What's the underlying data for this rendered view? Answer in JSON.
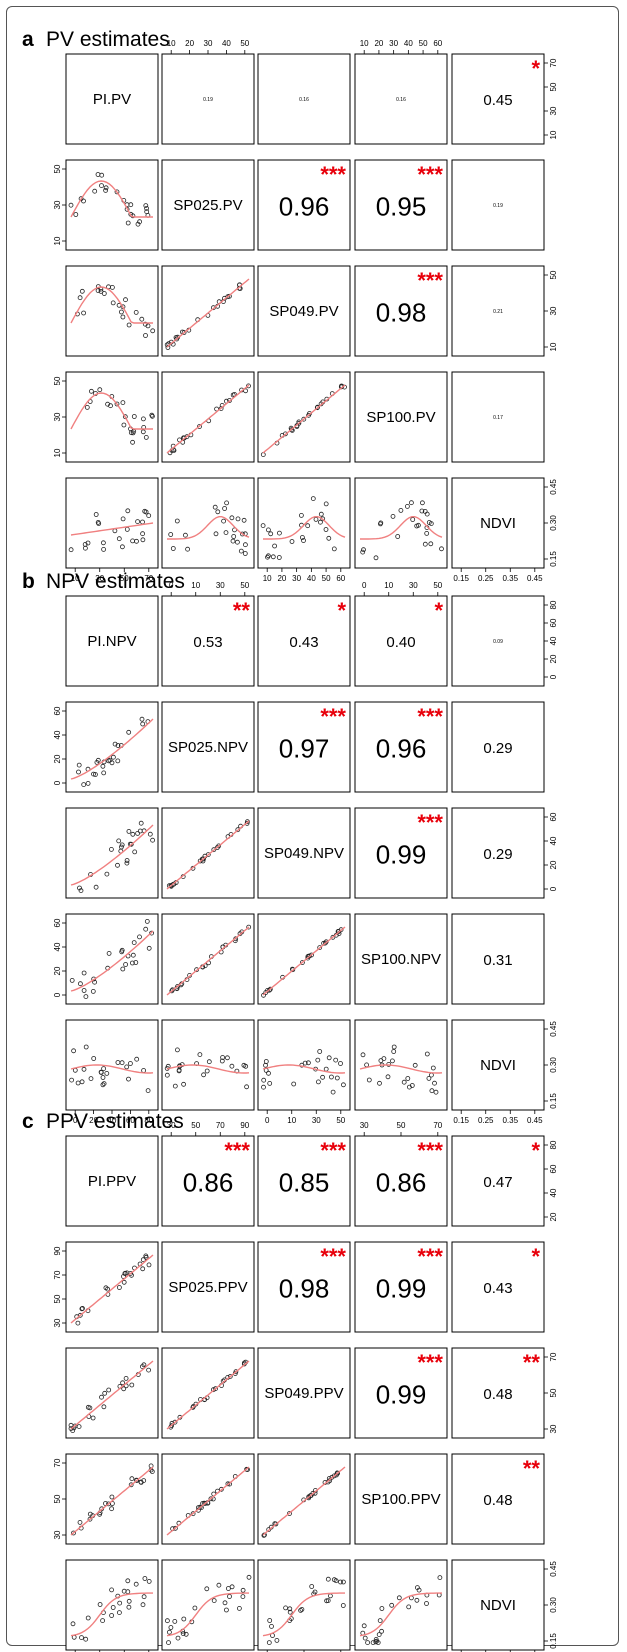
{
  "chart_data": [
    {
      "type": "scatter",
      "letter": "a",
      "title": "PV estimates",
      "variables": [
        "PI.PV",
        "SP025.PV",
        "SP049.PV",
        "SP100.PV",
        "NDVI"
      ],
      "correlations": [
        {
          "row": 0,
          "col": 1,
          "r": "0.19",
          "stars": "",
          "size": "tiny"
        },
        {
          "row": 0,
          "col": 2,
          "r": "0.16",
          "stars": "",
          "size": "tiny"
        },
        {
          "row": 0,
          "col": 3,
          "r": "0.16",
          "stars": "",
          "size": "tiny"
        },
        {
          "row": 0,
          "col": 4,
          "r": "0.45",
          "stars": "*",
          "size": "small"
        },
        {
          "row": 1,
          "col": 2,
          "r": "0.96",
          "stars": "***",
          "size": "large"
        },
        {
          "row": 1,
          "col": 3,
          "r": "0.95",
          "stars": "***",
          "size": "large"
        },
        {
          "row": 1,
          "col": 4,
          "r": "0.19",
          "stars": "",
          "size": "tiny"
        },
        {
          "row": 2,
          "col": 3,
          "r": "0.98",
          "stars": "***",
          "size": "large"
        },
        {
          "row": 2,
          "col": 4,
          "r": "0.21",
          "stars": "",
          "size": "tiny"
        },
        {
          "row": 3,
          "col": 4,
          "r": "0.17",
          "stars": "",
          "size": "tiny"
        }
      ],
      "top_ticks": {
        "1": [
          "10",
          "20",
          "30",
          "40",
          "50"
        ],
        "3": [
          "10",
          "20",
          "30",
          "40",
          "50",
          "60"
        ]
      },
      "right_ticks": {
        "0": [
          "10",
          "30",
          "50",
          "70"
        ],
        "2": [
          "10",
          "30",
          "50"
        ],
        "4": [
          "0.15",
          "0.30",
          "0.45"
        ]
      },
      "left_ticks": {
        "1": [
          "10",
          "30",
          "50"
        ],
        "3": [
          "10",
          "30",
          "50"
        ]
      },
      "bottom_ticks": {
        "0": [
          "10",
          "30",
          "50",
          "70"
        ],
        "2": [
          "10",
          "20",
          "30",
          "40",
          "50",
          "60"
        ],
        "4": [
          "0.15",
          "0.25",
          "0.35",
          "0.45"
        ]
      }
    },
    {
      "type": "scatter",
      "letter": "b",
      "title": "NPV estimates",
      "variables": [
        "PI.NPV",
        "SP025.NPV",
        "SP049.NPV",
        "SP100.NPV",
        "NDVI"
      ],
      "correlations": [
        {
          "row": 0,
          "col": 1,
          "r": "0.53",
          "stars": "**",
          "size": "small"
        },
        {
          "row": 0,
          "col": 2,
          "r": "0.43",
          "stars": "*",
          "size": "small"
        },
        {
          "row": 0,
          "col": 3,
          "r": "0.40",
          "stars": "*",
          "size": "small"
        },
        {
          "row": 0,
          "col": 4,
          "r": "0.09",
          "stars": "",
          "size": "tiny"
        },
        {
          "row": 1,
          "col": 2,
          "r": "0.97",
          "stars": "***",
          "size": "large"
        },
        {
          "row": 1,
          "col": 3,
          "r": "0.96",
          "stars": "***",
          "size": "large"
        },
        {
          "row": 1,
          "col": 4,
          "r": "0.29",
          "stars": "",
          "size": "small"
        },
        {
          "row": 2,
          "col": 3,
          "r": "0.99",
          "stars": "***",
          "size": "large"
        },
        {
          "row": 2,
          "col": 4,
          "r": "0.29",
          "stars": "",
          "size": "small"
        },
        {
          "row": 3,
          "col": 4,
          "r": "0.31",
          "stars": "",
          "size": "small"
        }
      ],
      "top_ticks": {
        "1": [
          "0",
          "10",
          "30",
          "50"
        ],
        "3": [
          "0",
          "10",
          "30",
          "50"
        ]
      },
      "right_ticks": {
        "0": [
          "0",
          "20",
          "40",
          "60",
          "80"
        ],
        "2": [
          "0",
          "20",
          "40",
          "60"
        ],
        "4": [
          "0.15",
          "0.30",
          "0.45"
        ]
      },
      "left_ticks": {
        "1": [
          "0",
          "20",
          "40",
          "60"
        ],
        "3": [
          "0",
          "20",
          "40",
          "60"
        ]
      },
      "bottom_ticks": {
        "0": [
          "0",
          "20",
          "40",
          "60",
          "80"
        ],
        "2": [
          "0",
          "10",
          "30",
          "50"
        ],
        "4": [
          "0.15",
          "0.25",
          "0.35",
          "0.45"
        ]
      }
    },
    {
      "type": "scatter",
      "letter": "c",
      "title": "PPV estimates",
      "variables": [
        "PI.PPV",
        "SP025.PPV",
        "SP049.PPV",
        "SP100.PPV",
        "NDVI"
      ],
      "correlations": [
        {
          "row": 0,
          "col": 1,
          "r": "0.86",
          "stars": "***",
          "size": "large"
        },
        {
          "row": 0,
          "col": 2,
          "r": "0.85",
          "stars": "***",
          "size": "large"
        },
        {
          "row": 0,
          "col": 3,
          "r": "0.86",
          "stars": "***",
          "size": "large"
        },
        {
          "row": 0,
          "col": 4,
          "r": "0.47",
          "stars": "*",
          "size": "small"
        },
        {
          "row": 1,
          "col": 2,
          "r": "0.98",
          "stars": "***",
          "size": "large"
        },
        {
          "row": 1,
          "col": 3,
          "r": "0.99",
          "stars": "***",
          "size": "large"
        },
        {
          "row": 1,
          "col": 4,
          "r": "0.43",
          "stars": "*",
          "size": "small"
        },
        {
          "row": 2,
          "col": 3,
          "r": "0.99",
          "stars": "***",
          "size": "large"
        },
        {
          "row": 2,
          "col": 4,
          "r": "0.48",
          "stars": "**",
          "size": "small"
        },
        {
          "row": 3,
          "col": 4,
          "r": "0.48",
          "stars": "**",
          "size": "small"
        }
      ],
      "top_ticks": {
        "1": [
          "30",
          "50",
          "70",
          "90"
        ],
        "3": [
          "30",
          "50",
          "70"
        ]
      },
      "right_ticks": {
        "0": [
          "20",
          "40",
          "60",
          "80"
        ],
        "2": [
          "30",
          "50",
          "70"
        ],
        "4": [
          "0.15",
          "0.30",
          "0.45"
        ]
      },
      "left_ticks": {
        "1": [
          "30",
          "50",
          "70",
          "90"
        ],
        "3": [
          "30",
          "50",
          "70"
        ]
      },
      "bottom_ticks": {
        "0": [
          "20",
          "40",
          "60",
          "80"
        ],
        "2": [
          "30",
          "50",
          "70"
        ],
        "4": [
          "0.15",
          "0.25",
          "0.35",
          "0.45"
        ]
      }
    }
  ]
}
